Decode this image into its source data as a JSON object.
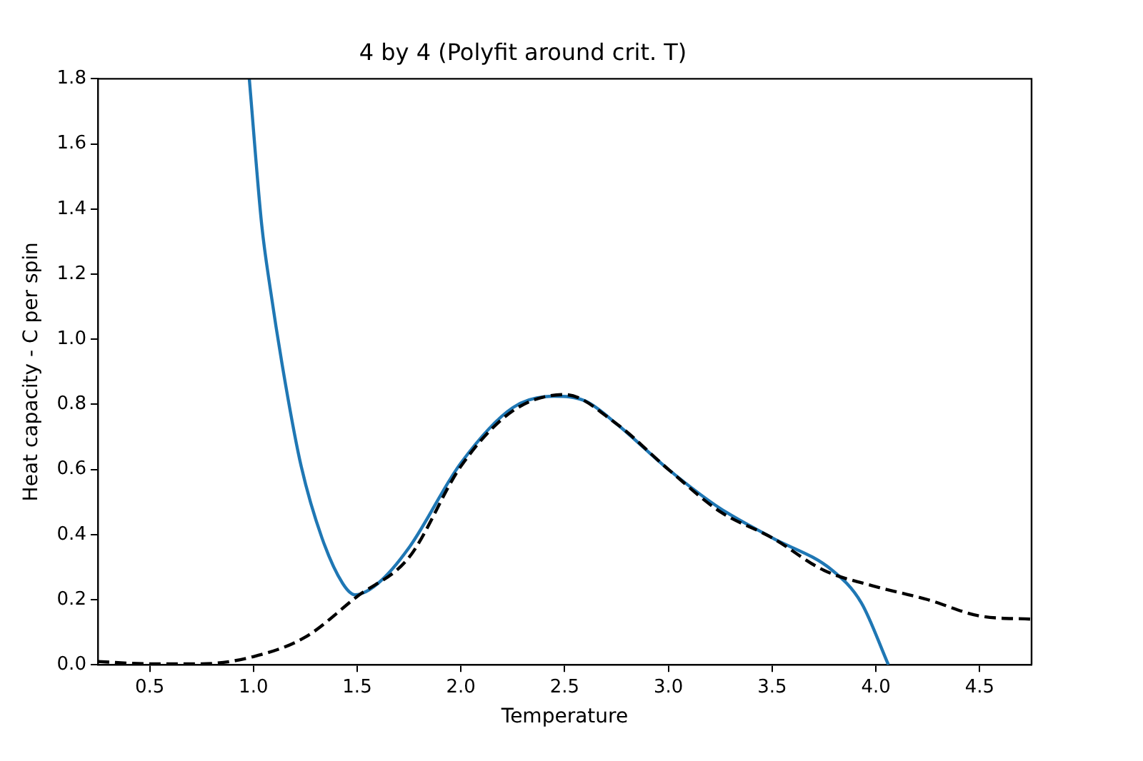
{
  "chart_data": {
    "type": "line",
    "title": "4 by 4 (Polyfit around crit. T)",
    "xlabel": "Temperature",
    "ylabel": "Heat capacity - C per spin",
    "xlim": [
      0.25,
      4.75
    ],
    "xticks": [
      0.5,
      {
        "value": 1,
        "label": "1.0"
      },
      1.5,
      {
        "value": 2,
        "label": "2.0"
      },
      2.5,
      {
        "value": 3,
        "label": "3.0"
      },
      3.5,
      {
        "value": 4,
        "label": "4.0"
      },
      4.5
    ],
    "ylim": [
      0,
      1.8
    ],
    "yticks": [
      {
        "value": 0,
        "label": "0.0"
      },
      0.2,
      0.4,
      0.6,
      0.8,
      {
        "value": 1,
        "label": "1.0"
      },
      1.2,
      1.4,
      1.6,
      1.8
    ],
    "grid": false,
    "legend": false,
    "series": [
      {
        "color": "#000000",
        "line_style": "dashed",
        "x": [
          0.25,
          0.5,
          0.75,
          1.0,
          1.25,
          1.5,
          1.75,
          2.0,
          2.25,
          2.5,
          2.75,
          3.0,
          3.25,
          3.5,
          3.75,
          4.0,
          4.25,
          4.5,
          4.75
        ],
        "values": [
          0.01,
          0.003,
          0.003,
          0.025,
          0.085,
          0.21,
          0.33,
          0.61,
          0.78,
          0.83,
          0.74,
          0.6,
          0.47,
          0.39,
          0.29,
          0.24,
          0.2,
          0.15,
          0.14
        ]
      },
      {
        "color": "#1f77b4",
        "line_style": "solid",
        "x": [
          0.98,
          1.04,
          1.08,
          1.155,
          1.23,
          1.33,
          1.43,
          1.49,
          1.6,
          1.75,
          2.0,
          2.25,
          2.45,
          2.6,
          2.75,
          3.0,
          3.25,
          3.5,
          3.79,
          3.93,
          4.06
        ],
        "values": [
          1.8,
          1.35,
          1.16,
          0.86,
          0.61,
          0.39,
          0.25,
          0.215,
          0.25,
          0.36,
          0.62,
          0.79,
          0.825,
          0.81,
          0.74,
          0.6,
          0.48,
          0.39,
          0.29,
          0.19,
          0.0
        ]
      }
    ]
  }
}
